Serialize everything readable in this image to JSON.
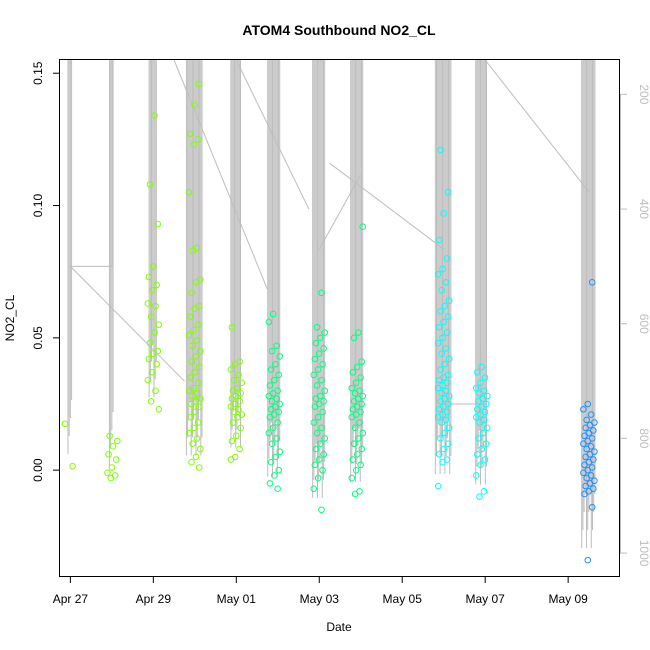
{
  "chart_data": {
    "type": "scatter",
    "title": "ATOM4 Southbound NO2_CL",
    "xlabel": "Date",
    "ylabel": "NO2_CL",
    "x_range": [
      "2016-04-26T18:00",
      "2016-05-10T06:00"
    ],
    "ylim": [
      -0.04,
      0.155
    ],
    "y_ticks": [
      0.0,
      0.05,
      0.1,
      0.15
    ],
    "y_tick_labels": [
      "0.00",
      "0.05",
      "0.10",
      "0.15"
    ],
    "x_ticks": [
      "2016-04-27",
      "2016-04-29",
      "2016-05-01",
      "2016-05-03",
      "2016-05-05",
      "2016-05-07",
      "2016-05-09"
    ],
    "x_tick_labels": [
      "Apr 27",
      "Apr 29",
      "May 01",
      "May 03",
      "May 05",
      "May 07",
      "May 09"
    ],
    "secondary_axis": {
      "side": "right",
      "reversed": true,
      "range": [
        1040,
        140
      ],
      "ticks": [
        200,
        400,
        600,
        800,
        1000
      ],
      "tick_labels": [
        "200",
        "400",
        "600",
        "800",
        "1000"
      ],
      "color": "#bdbdbd"
    },
    "colors": {
      "early": "#7fff00",
      "mid": "#00ff7f",
      "late": "#00ffff",
      "last": "#1e90ff",
      "trace": "#bdbdbd"
    },
    "clusters": [
      {
        "time": "2016-04-27T00:00",
        "values": [
          0.0175,
          0.0015
        ]
      },
      {
        "time": "2016-04-28T00:00",
        "values": [
          0.013,
          0.011,
          0.009,
          0.006,
          0.004,
          0.001,
          -0.001,
          -0.002,
          -0.003
        ]
      },
      {
        "time": "2016-04-29T00:00",
        "values": [
          0.134,
          0.108,
          0.093,
          0.077,
          0.073,
          0.07,
          0.068,
          0.063,
          0.062,
          0.058,
          0.055,
          0.052,
          0.048,
          0.045,
          0.044,
          0.042,
          0.04,
          0.037,
          0.034,
          0.03,
          0.026,
          0.023
        ]
      },
      {
        "time": "2016-04-30T00:00",
        "values": [
          0.146,
          0.138,
          0.127,
          0.125,
          0.123,
          0.105,
          0.084,
          0.083,
          0.072,
          0.071,
          0.067,
          0.062,
          0.061,
          0.058,
          0.055,
          0.053,
          0.051,
          0.049,
          0.047,
          0.045,
          0.043,
          0.041,
          0.039,
          0.037,
          0.035,
          0.033,
          0.031,
          0.03,
          0.029,
          0.028,
          0.027,
          0.026,
          0.025,
          0.024,
          0.022,
          0.02,
          0.018,
          0.016,
          0.014,
          0.012,
          0.01,
          0.008,
          0.005,
          0.003,
          0.001
        ]
      },
      {
        "time": "2016-05-01T00:00",
        "values": [
          0.054,
          0.041,
          0.04,
          0.038,
          0.036,
          0.034,
          0.033,
          0.031,
          0.03,
          0.029,
          0.028,
          0.027,
          0.026,
          0.025,
          0.024,
          0.023,
          0.022,
          0.021,
          0.02,
          0.018,
          0.016,
          0.013,
          0.011,
          0.008,
          0.005,
          0.004
        ]
      },
      {
        "time": "2016-05-01T22:00",
        "values": [
          0.059,
          0.056,
          0.047,
          0.045,
          0.043,
          0.04,
          0.038,
          0.036,
          0.034,
          0.032,
          0.03,
          0.029,
          0.028,
          0.027,
          0.026,
          0.025,
          0.024,
          0.023,
          0.022,
          0.021,
          0.02,
          0.018,
          0.016,
          0.014,
          0.012,
          0.01,
          0.007,
          0.005,
          0.003,
          0.0,
          -0.002,
          -0.005,
          -0.007
        ]
      },
      {
        "time": "2016-05-03T00:00",
        "values": [
          0.067,
          0.054,
          0.052,
          0.05,
          0.048,
          0.046,
          0.044,
          0.042,
          0.04,
          0.038,
          0.036,
          0.034,
          0.032,
          0.03,
          0.028,
          0.027,
          0.026,
          0.025,
          0.024,
          0.022,
          0.02,
          0.018,
          0.016,
          0.014,
          0.012,
          0.01,
          0.008,
          0.006,
          0.004,
          0.002,
          0.0,
          -0.003,
          -0.007,
          -0.015
        ]
      },
      {
        "time": "2016-05-03T22:00",
        "values": [
          0.092,
          0.052,
          0.05,
          0.041,
          0.039,
          0.037,
          0.035,
          0.033,
          0.031,
          0.03,
          0.029,
          0.028,
          0.027,
          0.026,
          0.025,
          0.024,
          0.023,
          0.022,
          0.021,
          0.02,
          0.018,
          0.016,
          0.014,
          0.012,
          0.01,
          0.008,
          0.006,
          0.004,
          0.002,
          0.0,
          -0.003,
          -0.008,
          -0.009
        ]
      },
      {
        "time": "2016-05-06T00:00",
        "values": [
          0.121,
          0.105,
          0.097,
          0.087,
          0.08,
          0.076,
          0.074,
          0.071,
          0.068,
          0.064,
          0.062,
          0.06,
          0.058,
          0.056,
          0.054,
          0.052,
          0.05,
          0.048,
          0.046,
          0.044,
          0.042,
          0.04,
          0.038,
          0.036,
          0.035,
          0.034,
          0.033,
          0.032,
          0.031,
          0.03,
          0.029,
          0.028,
          0.027,
          0.026,
          0.025,
          0.024,
          0.023,
          0.022,
          0.021,
          0.02,
          0.019,
          0.018,
          0.016,
          0.014,
          0.012,
          0.01,
          0.008,
          0.006,
          0.004,
          0.003,
          -0.006
        ]
      },
      {
        "time": "2016-05-06T22:00",
        "values": [
          0.039,
          0.037,
          0.035,
          0.033,
          0.031,
          0.03,
          0.029,
          0.028,
          0.027,
          0.026,
          0.025,
          0.024,
          0.023,
          0.022,
          0.021,
          0.02,
          0.019,
          0.018,
          0.016,
          0.014,
          0.012,
          0.01,
          0.008,
          0.006,
          0.004,
          0.002,
          -0.002,
          -0.008,
          -0.01
        ]
      },
      {
        "time": "2016-05-09T12:00",
        "values": [
          0.071,
          0.025,
          0.023,
          0.021,
          0.019,
          0.018,
          0.017,
          0.016,
          0.015,
          0.014,
          0.013,
          0.012,
          0.011,
          0.01,
          0.009,
          0.008,
          0.007,
          0.006,
          0.005,
          0.004,
          0.003,
          0.002,
          0.001,
          0.0,
          -0.001,
          -0.002,
          -0.003,
          -0.004,
          -0.005,
          -0.006,
          -0.007,
          -0.008,
          -0.009,
          -0.014,
          -0.034
        ]
      }
    ]
  }
}
